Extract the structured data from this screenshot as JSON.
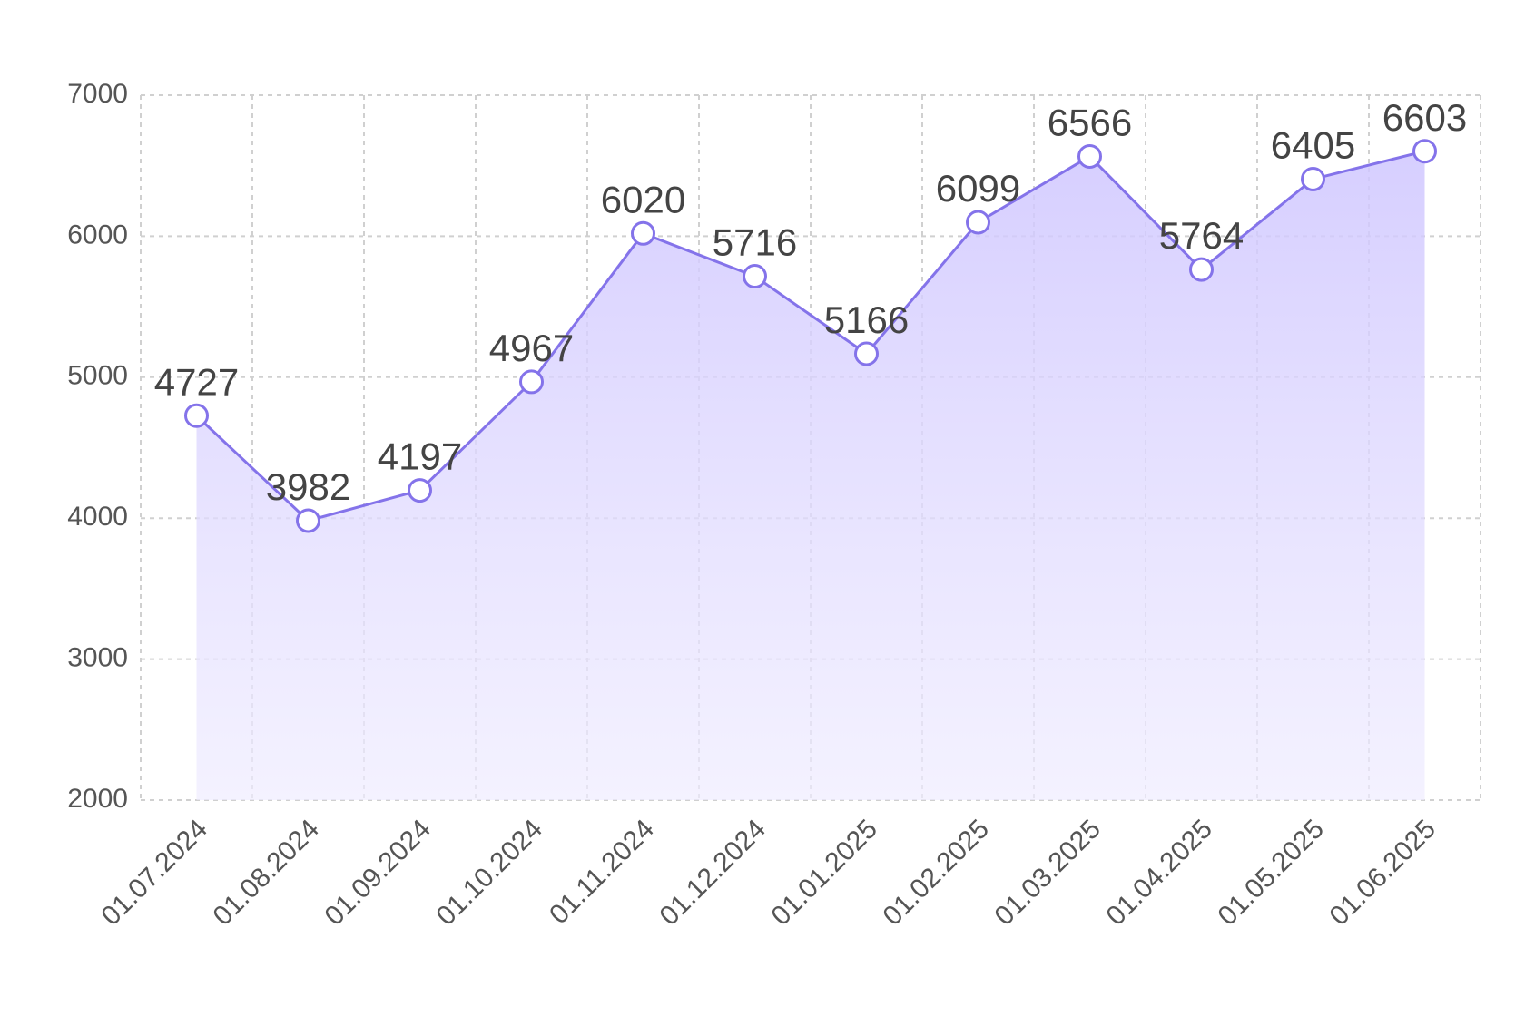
{
  "chart_data": {
    "type": "area",
    "categories": [
      "01.07.2024",
      "01.08.2024",
      "01.09.2024",
      "01.10.2024",
      "01.11.2024",
      "01.12.2024",
      "01.01.2025",
      "01.02.2025",
      "01.03.2025",
      "01.04.2025",
      "01.05.2025",
      "01.06.2025"
    ],
    "values": [
      4727,
      3982,
      4197,
      4967,
      6020,
      5716,
      5166,
      6099,
      6566,
      5764,
      6405,
      6603
    ],
    "color": "#8473ea",
    "ylim": [
      2000,
      7000
    ],
    "yticks": [
      2000,
      3000,
      4000,
      5000,
      6000,
      7000
    ],
    "grid": true
  }
}
